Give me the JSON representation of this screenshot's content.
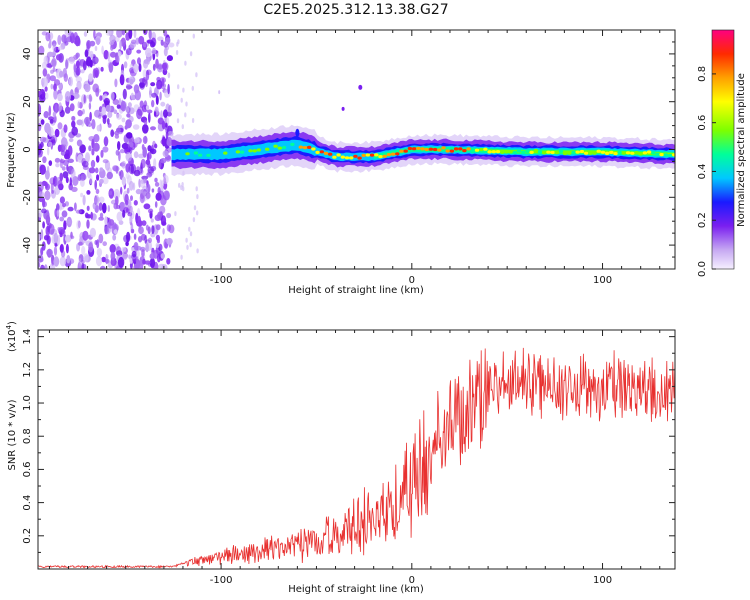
{
  "title": "C2E5.2025.312.13.38.G27",
  "chart_data": [
    {
      "type": "heatmap",
      "xlabel": "Height of straight line (km)",
      "ylabel": "Frequency (Hz)",
      "xlim": [
        -196,
        138
      ],
      "ylim": [
        -50,
        50
      ],
      "xticks": [
        -100,
        0,
        100
      ],
      "yticks": [
        -40,
        -20,
        0,
        20,
        40
      ],
      "colorbar": {
        "label": "Normalized spectral amplitude",
        "range": [
          0,
          0.98
        ],
        "ticks": [
          0.0,
          0.2,
          0.4,
          0.6,
          0.8
        ]
      },
      "ridge": {
        "description_points_x": [
          -125,
          -100,
          -80,
          -60,
          -40,
          -20,
          0,
          20,
          60,
          100,
          138
        ],
        "frequency_hz": [
          -2,
          -2,
          0,
          2,
          -3,
          -3,
          0,
          0,
          -1,
          -1,
          -2
        ]
      }
    },
    {
      "type": "line",
      "xlabel": "Height of straight line (km)",
      "ylabel": "SNR (10 * v/v)",
      "multiplier": "(x10",
      "multiplier_exp": "4",
      "multiplier_close": ")",
      "xlim": [
        -196,
        138
      ],
      "ylim": [
        0,
        1.44
      ],
      "xticks": [
        -100,
        0,
        100
      ],
      "yticks": [
        0.2,
        0.4,
        0.6,
        0.8,
        1.0,
        1.2,
        1.4
      ],
      "series": [
        {
          "name": "SNR",
          "color": "#e8302f",
          "x": [
            -196,
            -150,
            -125,
            -115,
            -100,
            -80,
            -60,
            -40,
            -20,
            -10,
            0,
            10,
            20,
            30,
            40,
            60,
            80,
            100,
            120,
            138
          ],
          "y": [
            0.02,
            0.02,
            0.02,
            0.06,
            0.1,
            0.14,
            0.2,
            0.28,
            0.42,
            0.58,
            0.72,
            0.92,
            1.05,
            1.15,
            1.2,
            1.22,
            1.24,
            1.22,
            1.2,
            1.15
          ]
        }
      ]
    }
  ]
}
